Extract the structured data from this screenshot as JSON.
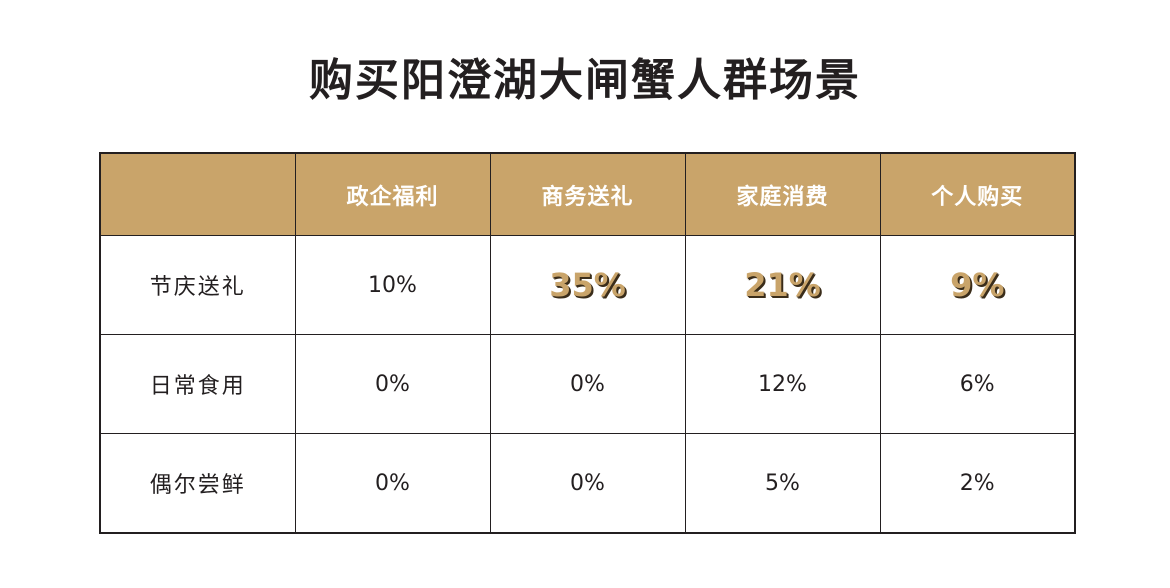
{
  "page_title": "购买阳澄湖大闸蟹人群场景",
  "colors": {
    "header_bg": "#c9a46a",
    "header_text": "#ffffff",
    "highlight_text": "#c9a46a",
    "border": "#231f20"
  },
  "chart_data": {
    "type": "table",
    "title": "购买阳澄湖大闸蟹人群场景",
    "columns": [
      "",
      "政企福利",
      "商务送礼",
      "家庭消费",
      "个人购买"
    ],
    "rows": [
      {
        "label": "节庆送礼",
        "values": [
          "10%",
          "35%",
          "21%",
          "9%"
        ],
        "highlighted": [
          false,
          true,
          true,
          true
        ]
      },
      {
        "label": "日常食用",
        "values": [
          "0%",
          "0%",
          "12%",
          "6%"
        ],
        "highlighted": [
          false,
          false,
          false,
          false
        ]
      },
      {
        "label": "偶尔尝鲜",
        "values": [
          "0%",
          "0%",
          "5%",
          "2%"
        ],
        "highlighted": [
          false,
          false,
          false,
          false
        ]
      }
    ]
  }
}
